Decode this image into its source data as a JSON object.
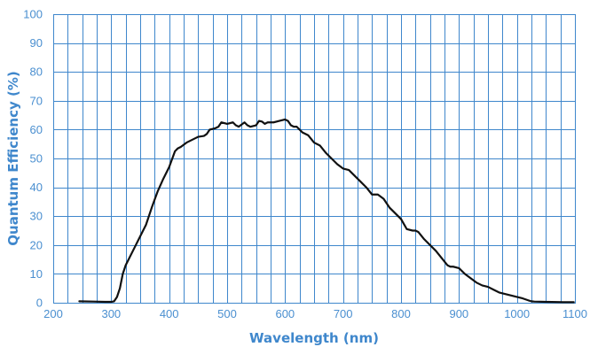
{
  "chart_data": {
    "type": "line",
    "title": "",
    "xlabel": "Wavelength (nm)",
    "ylabel": "Quantum Efficiency  (%)",
    "xlim": [
      200,
      1100
    ],
    "ylim": [
      0,
      100
    ],
    "xticks": [
      200,
      300,
      400,
      500,
      600,
      700,
      800,
      900,
      1000,
      1100
    ],
    "yticks": [
      0,
      10,
      20,
      30,
      40,
      50,
      60,
      70,
      80,
      90,
      100
    ],
    "x_minor_step": 25,
    "grid": true,
    "legend": "none",
    "colors": {
      "axis": "#3f87cc",
      "grid": "#3f87cc",
      "series": "#111111",
      "tick_text": "#4a8fd0"
    },
    "series": [
      {
        "x": [
          245,
          270,
          290,
          300,
          305,
          310,
          315,
          320,
          325,
          330,
          340,
          350,
          360,
          370,
          380,
          390,
          400,
          410,
          415,
          420,
          430,
          440,
          450,
          460,
          465,
          470,
          480,
          485,
          490,
          500,
          510,
          515,
          520,
          530,
          535,
          540,
          550,
          555,
          560,
          565,
          570,
          580,
          590,
          600,
          605,
          610,
          615,
          620,
          630,
          640,
          650,
          660,
          670,
          680,
          690,
          700,
          710,
          715,
          720,
          730,
          740,
          750,
          755,
          760,
          770,
          780,
          790,
          800,
          810,
          820,
          825,
          830,
          840,
          850,
          860,
          870,
          880,
          885,
          890,
          900,
          910,
          920,
          930,
          940,
          950,
          960,
          970,
          980,
          990,
          1000,
          1010,
          1020,
          1025,
          1030,
          1050,
          1080,
          1098
        ],
        "y": [
          0.5,
          0.4,
          0.3,
          0.3,
          0.5,
          2,
          5,
          10,
          13,
          15,
          19,
          23,
          27,
          33,
          38.5,
          43,
          47,
          52.5,
          53.5,
          54,
          55.5,
          56.5,
          57.5,
          57.8,
          58.5,
          60,
          60.5,
          61,
          62.5,
          62,
          62.5,
          61.5,
          61,
          62.5,
          61.5,
          61,
          61.5,
          63,
          62.8,
          62,
          62.5,
          62.5,
          63,
          63.5,
          63,
          61.5,
          61,
          61,
          59,
          58,
          55.5,
          54.5,
          52,
          50,
          48,
          46.5,
          46,
          45,
          44,
          42,
          40,
          37.5,
          37.5,
          37.5,
          36,
          33,
          31,
          29,
          25.5,
          25,
          25,
          24.5,
          22,
          20,
          18,
          15.5,
          13,
          12.5,
          12.5,
          12,
          10,
          8.5,
          7,
          6,
          5.5,
          4.5,
          3.5,
          3,
          2.5,
          2,
          1.5,
          0.8,
          0.5,
          0.4,
          0.3,
          0.2,
          0.2
        ]
      }
    ]
  }
}
